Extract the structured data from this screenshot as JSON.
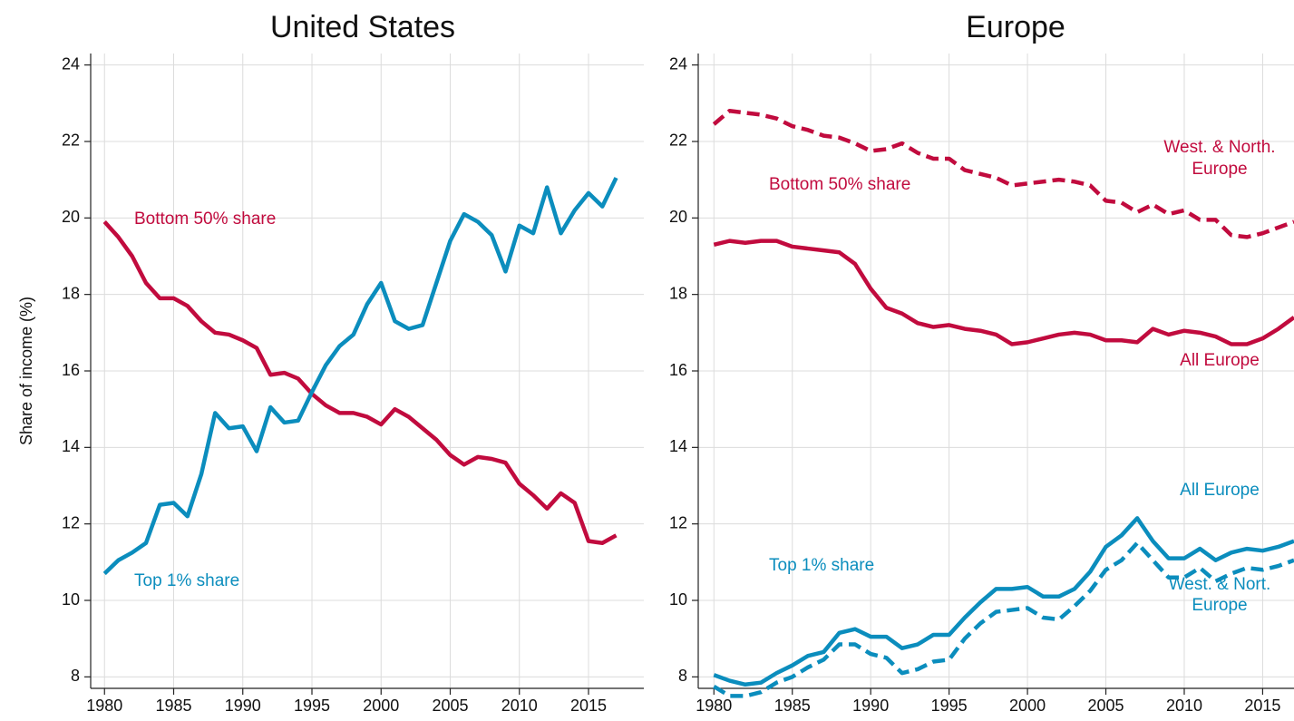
{
  "chart_data": [
    {
      "type": "line",
      "title": "United States",
      "ylabel": "Share of income (%)",
      "x": [
        1980,
        1981,
        1982,
        1983,
        1984,
        1985,
        1986,
        1987,
        1988,
        1989,
        1990,
        1991,
        1992,
        1993,
        1994,
        1995,
        1996,
        1997,
        1998,
        1999,
        2000,
        2001,
        2002,
        2003,
        2004,
        2005,
        2006,
        2007,
        2008,
        2009,
        2010,
        2011,
        2012,
        2013,
        2014,
        2015,
        2016,
        2017
      ],
      "xlim": [
        1979,
        2019
      ],
      "xticks": [
        1980,
        1985,
        1990,
        1995,
        2000,
        2005,
        2010,
        2015
      ],
      "ylim": [
        7.7,
        24.3
      ],
      "yticks": [
        8,
        10,
        12,
        14,
        16,
        18,
        20,
        22,
        24
      ],
      "grid": true,
      "series": [
        {
          "name": "Bottom 50% share",
          "color": "#c10b3e",
          "dashed": false,
          "values": [
            19.9,
            19.5,
            19.0,
            18.3,
            17.9,
            17.9,
            17.7,
            17.3,
            17.0,
            16.95,
            16.8,
            16.6,
            15.9,
            15.95,
            15.8,
            15.4,
            15.1,
            14.9,
            14.9,
            14.8,
            14.6,
            15.0,
            14.8,
            14.5,
            14.2,
            13.8,
            13.55,
            13.75,
            13.7,
            13.6,
            13.05,
            12.75,
            12.4,
            12.8,
            12.55,
            11.55,
            11.5,
            11.7
          ]
        },
        {
          "name": "Top 1% share",
          "color": "#0b8dbd",
          "dashed": false,
          "values": [
            10.7,
            11.05,
            11.25,
            11.5,
            12.5,
            12.55,
            12.2,
            13.3,
            14.9,
            14.5,
            14.55,
            13.9,
            15.05,
            14.65,
            14.7,
            15.45,
            16.15,
            16.65,
            16.95,
            17.75,
            18.3,
            17.3,
            17.1,
            17.2,
            18.3,
            19.4,
            20.1,
            19.9,
            19.55,
            18.6,
            19.8,
            19.6,
            20.8,
            19.6,
            20.2,
            20.65,
            20.3,
            21.05
          ]
        }
      ]
    },
    {
      "type": "line",
      "title": "Europe",
      "x": [
        1980,
        1981,
        1982,
        1983,
        1984,
        1985,
        1986,
        1987,
        1988,
        1989,
        1990,
        1991,
        1992,
        1993,
        1994,
        1995,
        1996,
        1997,
        1998,
        1999,
        2000,
        2001,
        2002,
        2003,
        2004,
        2005,
        2006,
        2007,
        2008,
        2009,
        2010,
        2011,
        2012,
        2013,
        2014,
        2015,
        2016,
        2017
      ],
      "xlim": [
        1979,
        2017
      ],
      "xticks": [
        1980,
        1985,
        1990,
        1995,
        2000,
        2005,
        2010,
        2015
      ],
      "ylim": [
        7.7,
        24.3
      ],
      "yticks": [
        8,
        10,
        12,
        14,
        16,
        18,
        20,
        22,
        24
      ],
      "grid": true,
      "annotations": [
        "Bottom 50% share",
        "Top 1% share"
      ],
      "series": [
        {
          "name": [
            "West. & North.",
            "Europe"
          ],
          "color": "#c10b3e",
          "dashed": true,
          "values": [
            22.45,
            22.8,
            22.75,
            22.7,
            22.6,
            22.4,
            22.3,
            22.15,
            22.1,
            21.95,
            21.75,
            21.8,
            21.95,
            21.7,
            21.55,
            21.55,
            21.25,
            21.15,
            21.05,
            20.85,
            20.9,
            20.95,
            21.0,
            20.95,
            20.85,
            20.45,
            20.4,
            20.15,
            20.35,
            20.1,
            20.2,
            19.95,
            19.95,
            19.55,
            19.5,
            19.6,
            19.75,
            19.9
          ]
        },
        {
          "name": [
            "All Europe"
          ],
          "color": "#c10b3e",
          "dashed": false,
          "values": [
            19.3,
            19.4,
            19.35,
            19.4,
            19.4,
            19.25,
            19.2,
            19.15,
            19.1,
            18.8,
            18.15,
            17.65,
            17.5,
            17.25,
            17.15,
            17.2,
            17.1,
            17.05,
            16.95,
            16.7,
            16.75,
            16.85,
            16.95,
            17.0,
            16.95,
            16.8,
            16.8,
            16.75,
            17.1,
            16.95,
            17.05,
            17.0,
            16.9,
            16.7,
            16.7,
            16.85,
            17.1,
            17.4
          ]
        },
        {
          "name": [
            "All Europe"
          ],
          "color": "#0b8dbd",
          "dashed": false,
          "values": [
            8.05,
            7.9,
            7.8,
            7.85,
            8.1,
            8.3,
            8.55,
            8.65,
            9.15,
            9.25,
            9.05,
            9.05,
            8.75,
            8.85,
            9.1,
            9.1,
            9.55,
            9.95,
            10.3,
            10.3,
            10.35,
            10.1,
            10.1,
            10.3,
            10.75,
            11.4,
            11.7,
            12.15,
            11.55,
            11.1,
            11.1,
            11.35,
            11.05,
            11.25,
            11.35,
            11.3,
            11.4,
            11.55
          ]
        },
        {
          "name": [
            "West. & Nort.",
            "Europe"
          ],
          "color": "#0b8dbd",
          "dashed": true,
          "values": [
            7.75,
            7.5,
            7.5,
            7.6,
            7.85,
            8.0,
            8.25,
            8.45,
            8.85,
            8.85,
            8.6,
            8.5,
            8.1,
            8.2,
            8.4,
            8.45,
            9.0,
            9.4,
            9.7,
            9.75,
            9.8,
            9.55,
            9.5,
            9.85,
            10.25,
            10.8,
            11.05,
            11.5,
            11.05,
            10.6,
            10.6,
            10.85,
            10.5,
            10.7,
            10.85,
            10.8,
            10.9,
            11.05
          ]
        }
      ]
    }
  ]
}
